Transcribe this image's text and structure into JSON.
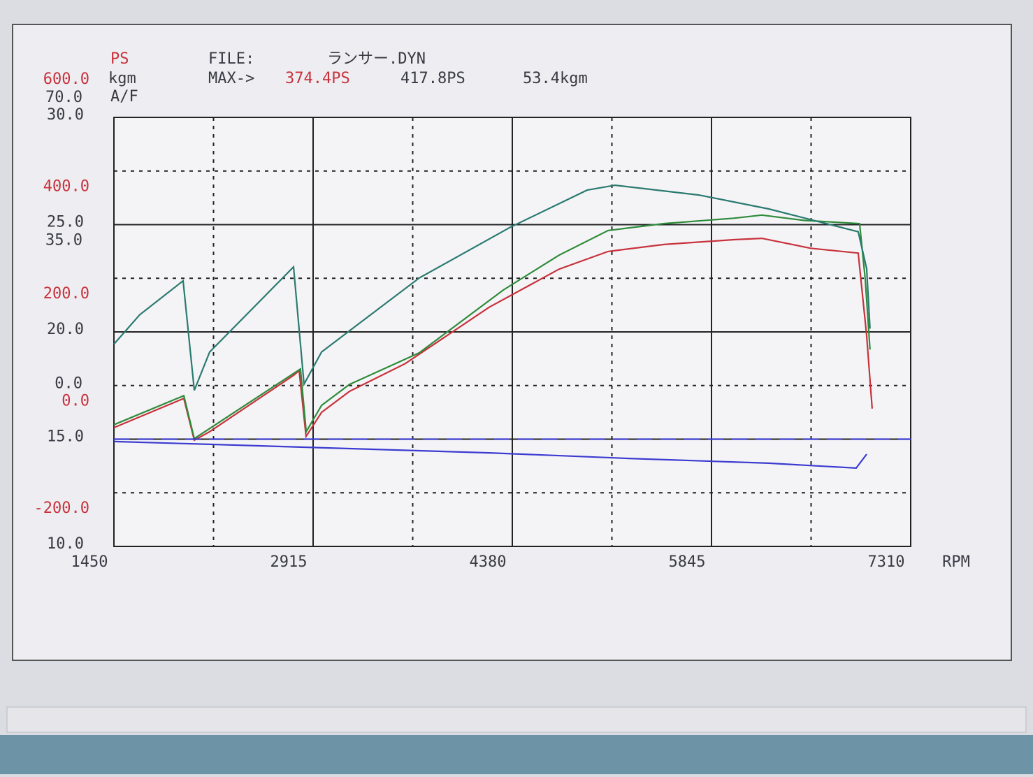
{
  "chart_data": {
    "type": "line",
    "header": {
      "ps_unit": "PS",
      "kgm_unit": "kgm",
      "af_unit": "A/F",
      "file_label": "FILE:",
      "file_name": "ランサー.DYN",
      "max_label": "MAX->",
      "max_ps_1": "374.4PS",
      "max_ps_2": "417.8PS",
      "max_kgm": "53.4kgm"
    },
    "xlabel": "RPM",
    "xlim": [
      1450,
      7310
    ],
    "xticks": [
      1450,
      2915,
      4380,
      5845,
      7310
    ],
    "ylim": [
      -200,
      600
    ],
    "yticks": [
      {
        "value": -200,
        "label": "-200.0"
      },
      {
        "value": 0,
        "label": "0.0"
      },
      {
        "value": 200,
        "label": "200.0"
      },
      {
        "value": 400,
        "label": "400.0"
      },
      {
        "value": 600,
        "label": "600.0"
      }
    ],
    "y2lim": [
      -35,
      70
    ],
    "y2ticks": [
      {
        "value": 0,
        "label": "0.0"
      },
      {
        "value": 35,
        "label": "35.0"
      },
      {
        "value": 70,
        "label": "70.0"
      }
    ],
    "y3lim": [
      10,
      30
    ],
    "y3ticks": [
      {
        "value": 10,
        "label": "10.0"
      },
      {
        "value": 15,
        "label": "15.0"
      },
      {
        "value": 20,
        "label": "20.0"
      },
      {
        "value": 25,
        "label": "25.0"
      },
      {
        "value": 30,
        "label": "30.0"
      }
    ],
    "grid": true,
    "series": [
      {
        "color": "#c8323c",
        "axis": "y",
        "x": [
          1450,
          1964,
          2041,
          2154,
          2771,
          2812,
          2863,
          2977,
          3182,
          3593,
          4210,
          4724,
          5084,
          5495,
          6009,
          6215,
          6575,
          6924,
          6986,
          7027
        ],
        "values": [
          21.5,
          76,
          -2,
          14,
          119,
          128,
          5,
          50,
          89,
          141,
          246,
          317,
          350,
          363,
          372,
          374.4,
          356,
          347,
          193,
          57
        ]
      },
      {
        "color": "#2e8b3a",
        "axis": "y",
        "x": [
          1450,
          1964,
          2041,
          2822,
          2864,
          2977,
          3182,
          3696,
          4313,
          4724,
          5084,
          5495,
          6009,
          6215,
          6523,
          6934,
          6976,
          7011
        ],
        "values": [
          27,
          81,
          1,
          131,
          14,
          63,
          102,
          161,
          278,
          343,
          389,
          402,
          412,
          417.8,
          408,
          402,
          298,
          167
        ]
      },
      {
        "color": "#2a7a70",
        "axis": "y2",
        "x": [
          1450,
          1640,
          1959,
          2041,
          2154,
          2771,
          2848,
          2977,
          3696,
          4364,
          4930,
          5135,
          5752,
          6266,
          6924,
          6986,
          7011
        ],
        "values": [
          14.5,
          21.7,
          30.0,
          3.2,
          12.6,
          33.4,
          4.7,
          12.6,
          30.7,
          43.1,
          52.2,
          53.4,
          51.0,
          47.6,
          42.0,
          33.0,
          18.3
        ]
      },
      {
        "color": "#3b3bd0",
        "axis": "y3",
        "x": [
          1450,
          2154,
          3182,
          4210,
          5238,
          6266,
          6909,
          6986
        ],
        "values": [
          14.89,
          14.76,
          14.56,
          14.36,
          14.1,
          13.88,
          13.65,
          14.3
        ]
      },
      {
        "color": "#3b3bd0",
        "axis": "y3",
        "dash": true,
        "x": [
          1450,
          7310
        ],
        "values": [
          15,
          15
        ]
      }
    ]
  }
}
